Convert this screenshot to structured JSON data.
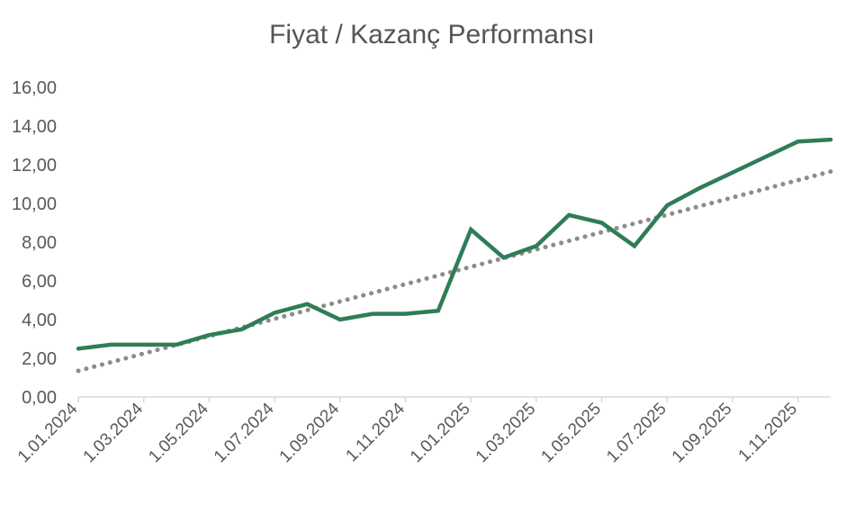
{
  "chart_data": {
    "type": "line",
    "title": "Fiyat / Kazanç Performansı",
    "xlabel": "",
    "ylabel": "",
    "ylim": [
      0,
      16
    ],
    "yticks": [
      "0,00",
      "2,00",
      "4,00",
      "6,00",
      "8,00",
      "10,00",
      "12,00",
      "14,00",
      "16,00"
    ],
    "xticks": [
      "1.01.2024",
      "1.03.2024",
      "1.05.2024",
      "1.07.2024",
      "1.09.2024",
      "1.11.2024",
      "1.01.2025",
      "1.03.2025",
      "1.05.2025",
      "1.07.2025",
      "1.09.2025",
      "1.11.2025"
    ],
    "x": [
      "1.01.2024",
      "1.02.2024",
      "1.03.2024",
      "1.04.2024",
      "1.05.2024",
      "1.06.2024",
      "1.07.2024",
      "1.08.2024",
      "1.09.2024",
      "1.10.2024",
      "1.11.2024",
      "1.12.2024",
      "1.01.2025",
      "1.02.2025",
      "1.03.2025",
      "1.04.2025",
      "1.05.2025",
      "1.06.2025",
      "1.07.2025",
      "1.08.2025",
      "1.09.2025",
      "1.10.2025",
      "1.11.2025",
      "1.12.2025"
    ],
    "series": [
      {
        "values": [
          2.5,
          2.7,
          2.7,
          2.7,
          3.2,
          3.5,
          4.35,
          4.8,
          4.0,
          4.3,
          4.3,
          4.45,
          8.65,
          7.2,
          7.8,
          9.4,
          9.0,
          7.8,
          9.9,
          10.8,
          11.6,
          12.4,
          13.2,
          13.3
        ],
        "color": "#2e7d57",
        "style": "solid"
      }
    ],
    "trendline": {
      "start": 1.35,
      "end": 11.65,
      "color": "#8c8c8c",
      "style": "dotted"
    },
    "grid": false,
    "legend": "none"
  }
}
